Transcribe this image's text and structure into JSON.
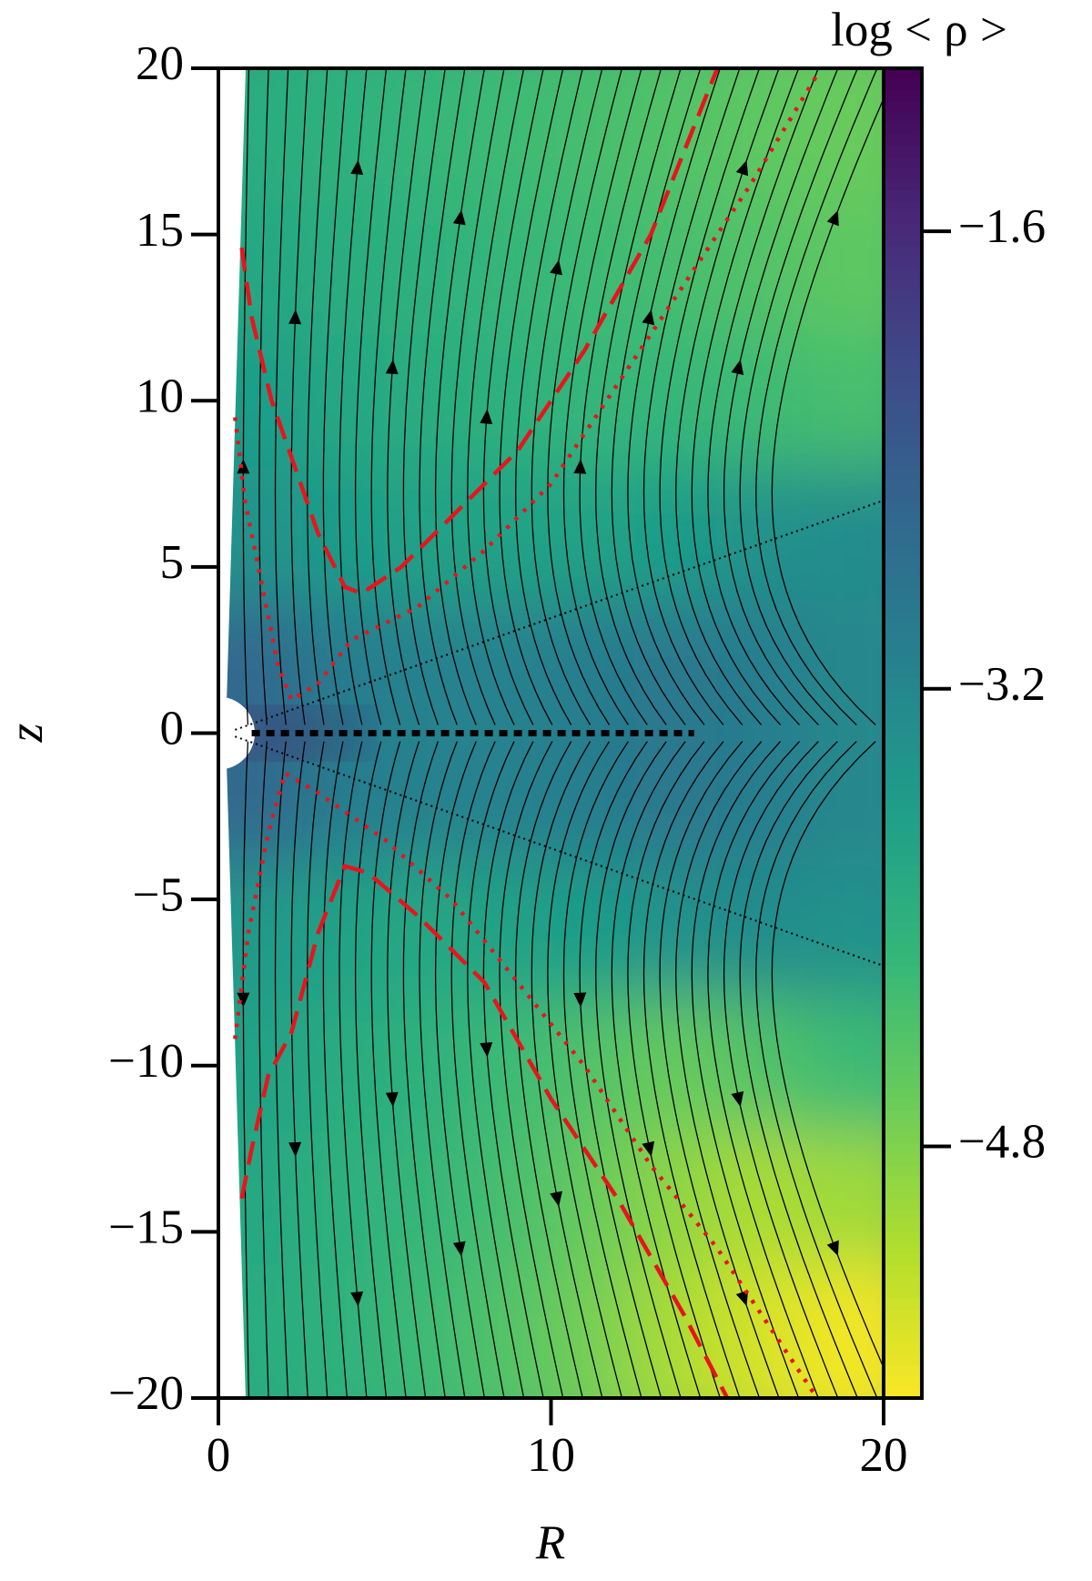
{
  "chart_data": {
    "type": "heatmap",
    "xlabel": "R",
    "ylabel": "z",
    "colorbar_label": "log < ρ >",
    "colormap": "viridis",
    "xlim": [
      0,
      20
    ],
    "ylim": [
      -20,
      20
    ],
    "xticks": [
      0,
      10,
      20
    ],
    "yticks": [
      20,
      15,
      10,
      5,
      0,
      {
        "value": -5,
        "label": "−5"
      },
      {
        "value": -10,
        "label": "−10"
      },
      {
        "value": -15,
        "label": "−15"
      },
      {
        "value": -20,
        "label": "−20"
      }
    ],
    "clim": [
      -5.68,
      -1.03
    ],
    "cticks": [
      {
        "value": -1.6,
        "label": "−1.6"
      },
      {
        "value": -3.2,
        "label": "−3.2"
      },
      {
        "value": -4.8,
        "label": "−4.8"
      }
    ],
    "x": [
      1.25,
      3.75,
      6.25,
      8.75,
      11.25,
      13.75,
      16.25,
      18.75
    ],
    "y": [
      18,
      14,
      10,
      6,
      2,
      -2,
      -6,
      -10,
      -14,
      -18
    ],
    "z": [
      [
        -3.9,
        -4.0,
        -4.1,
        -4.2,
        -4.3,
        -4.4,
        -4.5,
        -4.6
      ],
      [
        -3.8,
        -3.9,
        -4.0,
        -4.1,
        -4.2,
        -4.3,
        -4.4,
        -4.5
      ],
      [
        -3.6,
        -3.8,
        -3.9,
        -4.0,
        -4.1,
        -4.1,
        -4.2,
        -4.3
      ],
      [
        -3.4,
        -3.6,
        -3.7,
        -3.7,
        -3.7,
        -3.6,
        -3.4,
        -3.3
      ],
      [
        -2.6,
        -3.0,
        -3.1,
        -3.1,
        -3.0,
        -2.9,
        -3.0,
        -3.2
      ],
      [
        -2.6,
        -3.0,
        -3.1,
        -3.1,
        -3.0,
        -2.9,
        -3.0,
        -3.2
      ],
      [
        -3.5,
        -3.7,
        -3.8,
        -3.7,
        -3.6,
        -3.4,
        -3.3,
        -3.4
      ],
      [
        -3.7,
        -3.9,
        -4.0,
        -4.2,
        -4.4,
        -4.6,
        -4.4,
        -4.2
      ],
      [
        -3.8,
        -4.0,
        -4.1,
        -4.3,
        -4.6,
        -4.9,
        -5.1,
        -5.0
      ],
      [
        -3.9,
        -4.0,
        -4.2,
        -4.4,
        -4.7,
        -5.1,
        -5.4,
        -5.6
      ]
    ],
    "lines": [
      {
        "color": "#e8141c",
        "style": "dashed",
        "x": [
          0.7,
          1,
          1.6,
          2.3,
          3,
          3.8,
          4.3,
          5.5,
          7,
          9,
          11,
          13,
          15
        ],
        "y": [
          14.6,
          12.5,
          10,
          8,
          6,
          4.4,
          4.2,
          5,
          6.5,
          8.5,
          11.5,
          15,
          20
        ]
      },
      {
        "color": "#e8141c",
        "style": "dotted",
        "x": [
          0.5,
          0.8,
          1.3,
          1.8,
          2.2,
          3,
          4,
          6,
          8,
          10,
          12,
          14,
          16,
          18
        ],
        "y": [
          9.5,
          7,
          4.5,
          2,
          1,
          1.5,
          2.8,
          3.8,
          5.5,
          7.5,
          10.5,
          13.5,
          16.5,
          19.8
        ]
      },
      {
        "color": "#e8141c",
        "style": "dashed",
        "x": [
          0.7,
          1,
          1.5,
          2.2,
          3,
          3.8,
          4.5,
          6,
          8,
          10,
          12,
          14,
          15.3
        ],
        "y": [
          -14,
          -12.5,
          -10.3,
          -9,
          -6,
          -4,
          -4.2,
          -5.5,
          -7.5,
          -11,
          -14,
          -17.5,
          -20
        ]
      },
      {
        "color": "#e8141c",
        "style": "dotted",
        "x": [
          0.5,
          0.9,
          1.5,
          2,
          3,
          5,
          7,
          9,
          11,
          13,
          15,
          17,
          18
        ],
        "y": [
          -9.2,
          -6,
          -3,
          -1.2,
          -1.8,
          -3.2,
          -5,
          -7.5,
          -10,
          -13,
          -15.5,
          -18.5,
          -20
        ]
      },
      {
        "color": "#000000",
        "style": "fine-dotted",
        "x": [
          0.5,
          20
        ],
        "y": [
          0.1,
          7
        ]
      },
      {
        "color": "#000000",
        "style": "fine-dotted",
        "x": [
          0.5,
          20
        ],
        "y": [
          -0.1,
          -7
        ]
      },
      {
        "color": "#000000",
        "style": "thick-dotted",
        "x": [
          1,
          14.3
        ],
        "y": [
          0,
          0
        ]
      }
    ]
  }
}
